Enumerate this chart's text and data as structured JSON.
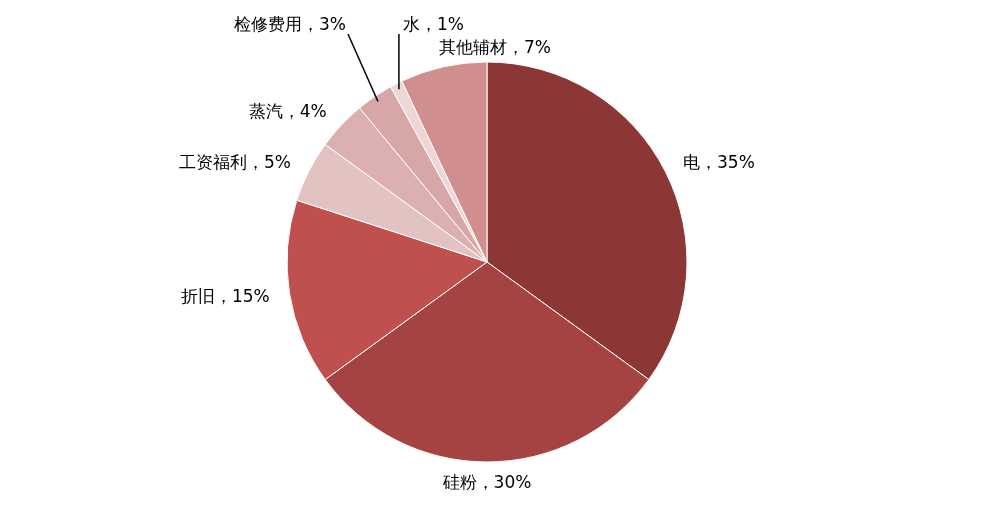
{
  "chart_data": {
    "type": "pie",
    "categories": [
      "电",
      "硅粉",
      "折旧",
      "工资福利",
      "蒸汽",
      "检修费用",
      "水",
      "其他辅材"
    ],
    "values": [
      35,
      30,
      15,
      5,
      4,
      3,
      1,
      7
    ],
    "value_labels": [
      "，35%",
      "，30%",
      "，15%",
      "，5%",
      "，4%",
      "，3%",
      "，1%",
      "，7%"
    ],
    "colors": [
      "#8c3636",
      "#a54242",
      "#c0504d",
      "#e3c2c2",
      "#dcb0b0",
      "#d7a6a6",
      "#ecd6d6",
      "#d08e8e"
    ]
  }
}
